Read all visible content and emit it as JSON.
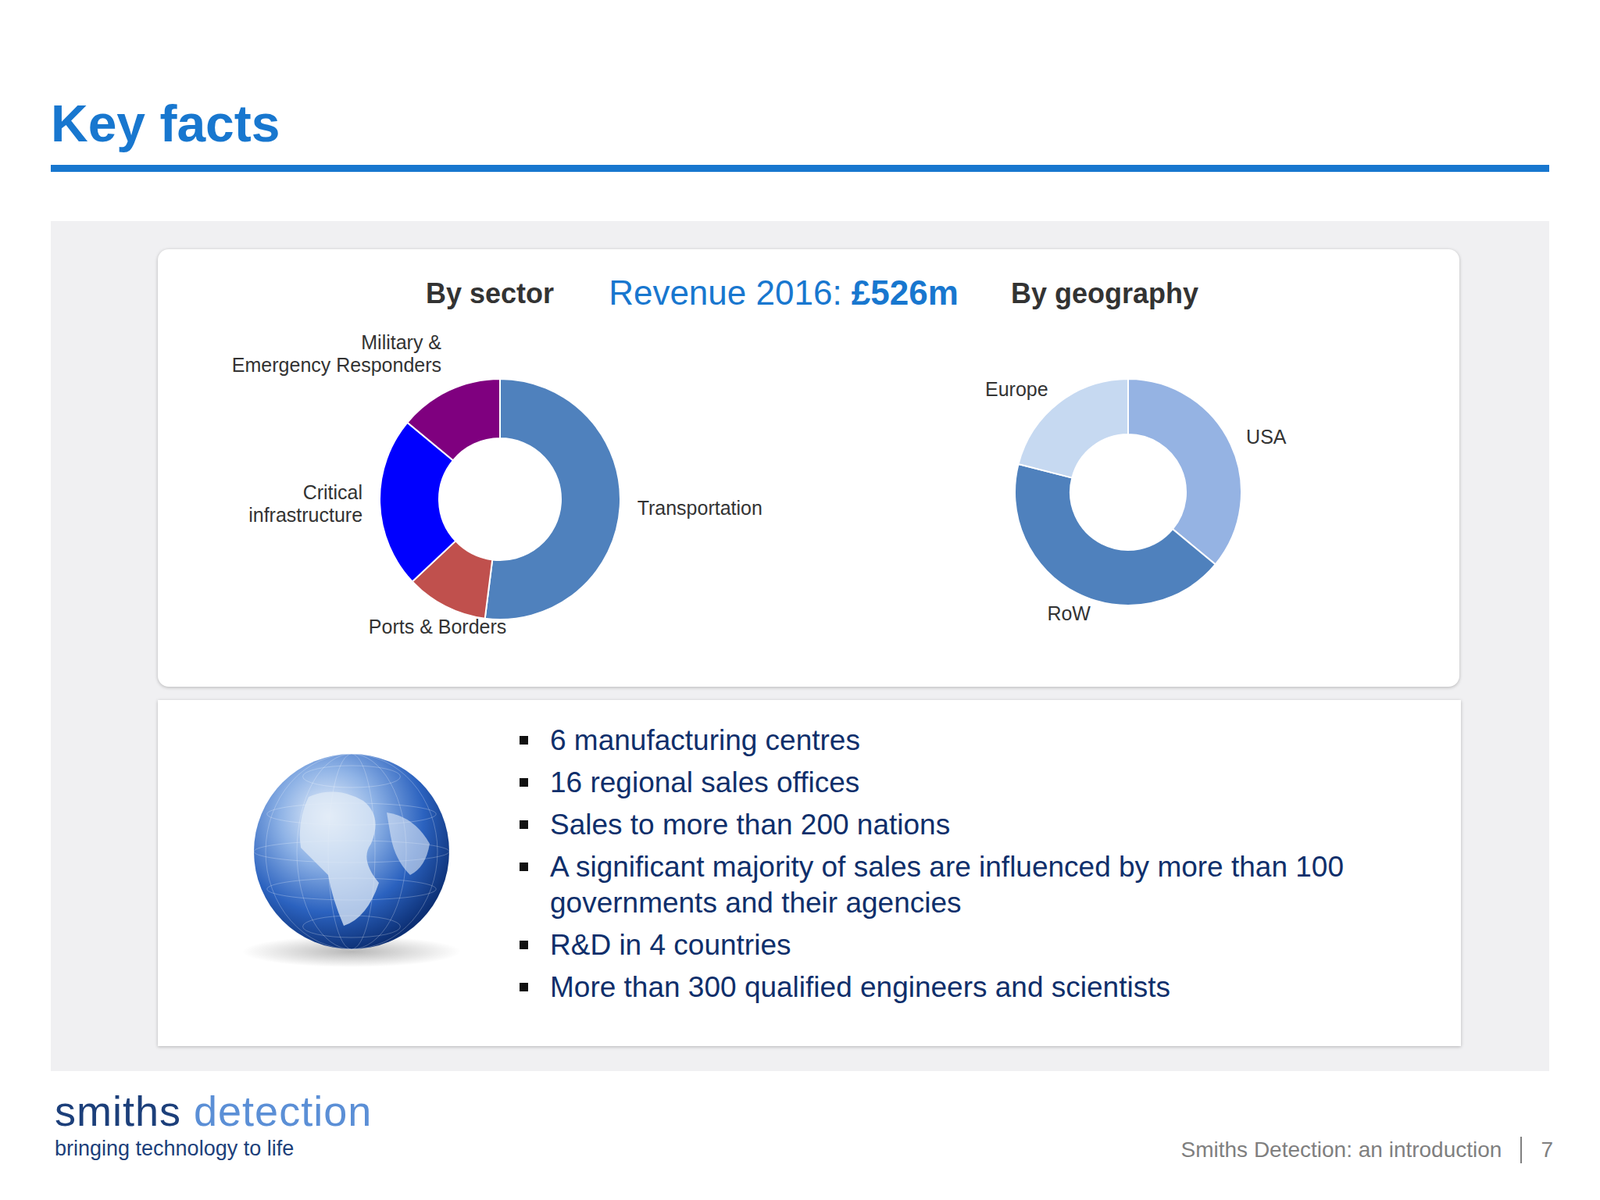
{
  "title": "Key facts",
  "revenue": {
    "label": "Revenue 2016:",
    "value": "£526m"
  },
  "chart_data": [
    {
      "type": "donut",
      "title": "By sector",
      "categories": [
        "Transportation",
        "Ports & Borders",
        "Critical infrastructure",
        "Military & Emergency Responders"
      ],
      "values": [
        52,
        11,
        23,
        14
      ],
      "colors": [
        "#4f81bd",
        "#c0504d",
        "#0000ff",
        "#7f007f"
      ]
    },
    {
      "type": "donut",
      "title": "By geography",
      "categories": [
        "USA",
        "RoW",
        "Europe"
      ],
      "values": [
        36,
        43,
        21
      ],
      "colors": [
        "#95b3e3",
        "#4f81bd",
        "#c6d9f1"
      ]
    }
  ],
  "facts": [
    "6 manufacturing centres",
    "16 regional sales offices",
    "Sales to more than 200 nations",
    "A significant majority of sales are influenced by more than 100 governments and their agencies",
    "R&D in 4 countries",
    "More than 300 qualified engineers and scientists"
  ],
  "footer": {
    "logo": "smiths detection",
    "tagline": "bringing technology to life",
    "deck": "Smiths Detection: an introduction",
    "page": "7"
  }
}
